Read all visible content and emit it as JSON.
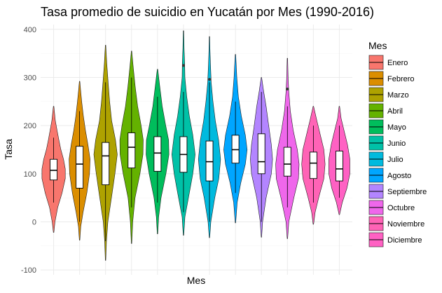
{
  "chart_data": {
    "type": "violin",
    "title": "Tasa promedio de suicidio en Yucatán por Mes (1990-2016)",
    "xlabel": "Mes",
    "ylabel": "Tasa",
    "ylim": [
      -110,
      410
    ],
    "yticks": [
      -100,
      0,
      100,
      200,
      300,
      400
    ],
    "grid": true,
    "legend": {
      "title": "Mes",
      "position": "right"
    },
    "categories": [
      "Enero",
      "Febrero",
      "Marzo",
      "Abril",
      "Mayo",
      "Junio",
      "Julio",
      "Agosto",
      "Septiembre",
      "Octubre",
      "Noviembre",
      "Diciembre"
    ],
    "series": [
      {
        "name": "Enero",
        "color": "#F8766D",
        "min": -22,
        "max": 240,
        "q1": 87,
        "median": 107,
        "q3": 130,
        "whisker_low": 40,
        "whisker_high": 175,
        "outliers": [],
        "density": [
          [
            -22,
            0.02
          ],
          [
            0,
            0.12
          ],
          [
            30,
            0.35
          ],
          [
            60,
            0.72
          ],
          [
            90,
            1.0
          ],
          [
            110,
            1.0
          ],
          [
            130,
            0.85
          ],
          [
            150,
            0.62
          ],
          [
            170,
            0.45
          ],
          [
            190,
            0.3
          ],
          [
            210,
            0.15
          ],
          [
            240,
            0.02
          ]
        ]
      },
      {
        "name": "Febrero",
        "color": "#DB8E00",
        "min": -38,
        "max": 292,
        "q1": 70,
        "median": 120,
        "q3": 157,
        "whisker_low": 0,
        "whisker_high": 230,
        "outliers": [],
        "density": [
          [
            -38,
            0.02
          ],
          [
            -10,
            0.1
          ],
          [
            20,
            0.3
          ],
          [
            60,
            0.62
          ],
          [
            100,
            0.85
          ],
          [
            130,
            0.9
          ],
          [
            160,
            0.72
          ],
          [
            190,
            0.5
          ],
          [
            220,
            0.32
          ],
          [
            250,
            0.18
          ],
          [
            275,
            0.08
          ],
          [
            292,
            0.02
          ]
        ]
      },
      {
        "name": "Marzo",
        "color": "#AEA200",
        "min": -80,
        "max": 367,
        "q1": 77,
        "median": 137,
        "q3": 165,
        "whisker_low": -40,
        "whisker_high": 290,
        "outliers": [],
        "density": [
          [
            -80,
            0.02
          ],
          [
            -40,
            0.08
          ],
          [
            0,
            0.2
          ],
          [
            50,
            0.5
          ],
          [
            100,
            0.8
          ],
          [
            140,
            1.0
          ],
          [
            170,
            0.85
          ],
          [
            210,
            0.52
          ],
          [
            250,
            0.35
          ],
          [
            290,
            0.22
          ],
          [
            330,
            0.1
          ],
          [
            367,
            0.02
          ]
        ]
      },
      {
        "name": "Abril",
        "color": "#64B200",
        "min": -45,
        "max": 355,
        "q1": 112,
        "median": 155,
        "q3": 185,
        "whisker_low": 30,
        "whisker_high": 300,
        "outliers": [],
        "density": [
          [
            -45,
            0.02
          ],
          [
            0,
            0.1
          ],
          [
            50,
            0.3
          ],
          [
            100,
            0.72
          ],
          [
            140,
            0.98
          ],
          [
            170,
            1.0
          ],
          [
            200,
            0.82
          ],
          [
            240,
            0.52
          ],
          [
            280,
            0.32
          ],
          [
            320,
            0.15
          ],
          [
            355,
            0.02
          ]
        ]
      },
      {
        "name": "Mayo",
        "color": "#00BD5C",
        "min": -25,
        "max": 317,
        "q1": 105,
        "median": 143,
        "q3": 177,
        "whisker_low": 40,
        "whisker_high": 260,
        "outliers": [],
        "density": [
          [
            -25,
            0.02
          ],
          [
            10,
            0.1
          ],
          [
            50,
            0.3
          ],
          [
            100,
            0.72
          ],
          [
            140,
            0.98
          ],
          [
            170,
            0.95
          ],
          [
            200,
            0.7
          ],
          [
            240,
            0.4
          ],
          [
            280,
            0.2
          ],
          [
            317,
            0.02
          ]
        ]
      },
      {
        "name": "Junio",
        "color": "#00C1A7",
        "min": -28,
        "max": 397,
        "q1": 103,
        "median": 140,
        "q3": 177,
        "whisker_low": 20,
        "whisker_high": 270,
        "outliers": [
          325
        ],
        "density": [
          [
            -28,
            0.02
          ],
          [
            10,
            0.12
          ],
          [
            60,
            0.5
          ],
          [
            100,
            0.8
          ],
          [
            140,
            1.0
          ],
          [
            180,
            0.8
          ],
          [
            220,
            0.5
          ],
          [
            260,
            0.28
          ],
          [
            300,
            0.12
          ],
          [
            330,
            0.1
          ],
          [
            360,
            0.05
          ],
          [
            397,
            0.02
          ]
        ]
      },
      {
        "name": "Julio",
        "color": "#00BADE",
        "min": -33,
        "max": 385,
        "q1": 85,
        "median": 125,
        "q3": 168,
        "whisker_low": 0,
        "whisker_high": 290,
        "outliers": [
          296
        ],
        "density": [
          [
            -33,
            0.02
          ],
          [
            0,
            0.12
          ],
          [
            50,
            0.45
          ],
          [
            90,
            0.8
          ],
          [
            130,
            0.95
          ],
          [
            170,
            0.78
          ],
          [
            210,
            0.5
          ],
          [
            250,
            0.3
          ],
          [
            290,
            0.15
          ],
          [
            330,
            0.08
          ],
          [
            360,
            0.04
          ],
          [
            385,
            0.02
          ]
        ]
      },
      {
        "name": "Agosto",
        "color": "#00A6FF",
        "min": -2,
        "max": 348,
        "q1": 122,
        "median": 150,
        "q3": 180,
        "whisker_low": 60,
        "whisker_high": 250,
        "outliers": [],
        "density": [
          [
            -2,
            0.02
          ],
          [
            40,
            0.15
          ],
          [
            80,
            0.45
          ],
          [
            120,
            0.85
          ],
          [
            150,
            1.0
          ],
          [
            180,
            0.85
          ],
          [
            220,
            0.5
          ],
          [
            260,
            0.25
          ],
          [
            300,
            0.12
          ],
          [
            348,
            0.02
          ]
        ]
      },
      {
        "name": "Septiembre",
        "color": "#B385FF",
        "min": -32,
        "max": 300,
        "q1": 100,
        "median": 125,
        "q3": 183,
        "whisker_low": 0,
        "whisker_high": 270,
        "outliers": [],
        "density": [
          [
            -32,
            0.02
          ],
          [
            0,
            0.1
          ],
          [
            50,
            0.4
          ],
          [
            100,
            0.85
          ],
          [
            130,
            0.95
          ],
          [
            160,
            0.85
          ],
          [
            200,
            0.62
          ],
          [
            240,
            0.4
          ],
          [
            270,
            0.2
          ],
          [
            300,
            0.02
          ]
        ]
      },
      {
        "name": "Octubre",
        "color": "#EF67EB",
        "min": -35,
        "max": 340,
        "q1": 95,
        "median": 120,
        "q3": 155,
        "whisker_low": 30,
        "whisker_high": 240,
        "outliers": [
          276
        ],
        "density": [
          [
            -35,
            0.02
          ],
          [
            0,
            0.12
          ],
          [
            50,
            0.55
          ],
          [
            90,
            0.95
          ],
          [
            120,
            1.0
          ],
          [
            150,
            0.85
          ],
          [
            190,
            0.5
          ],
          [
            230,
            0.25
          ],
          [
            270,
            0.12
          ],
          [
            300,
            0.06
          ],
          [
            340,
            0.02
          ]
        ]
      },
      {
        "name": "Noviembre",
        "color": "#FF63B6",
        "min": -5,
        "max": 240,
        "q1": 90,
        "median": 122,
        "q3": 145,
        "whisker_low": 40,
        "whisker_high": 200,
        "outliers": [],
        "density": [
          [
            -5,
            0.02
          ],
          [
            20,
            0.15
          ],
          [
            50,
            0.45
          ],
          [
            90,
            0.9
          ],
          [
            120,
            1.0
          ],
          [
            150,
            0.9
          ],
          [
            180,
            0.6
          ],
          [
            210,
            0.3
          ],
          [
            240,
            0.02
          ]
        ]
      },
      {
        "name": "Diciembre",
        "color": "#FF61C3",
        "min": 15,
        "max": 240,
        "q1": 85,
        "median": 110,
        "q3": 147,
        "whisker_low": 50,
        "whisker_high": 200,
        "outliers": [],
        "density": [
          [
            15,
            0.02
          ],
          [
            40,
            0.25
          ],
          [
            70,
            0.65
          ],
          [
            100,
            0.9
          ],
          [
            130,
            0.9
          ],
          [
            160,
            0.7
          ],
          [
            190,
            0.4
          ],
          [
            215,
            0.15
          ],
          [
            240,
            0.02
          ]
        ]
      }
    ]
  }
}
